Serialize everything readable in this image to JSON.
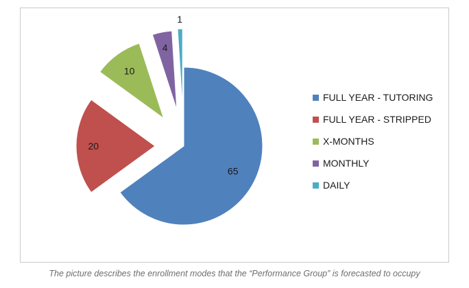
{
  "chart_data": {
    "type": "pie",
    "exploded": true,
    "categories": [
      "FULL YEAR - TUTORING",
      "FULL YEAR - STRIPPED",
      "X-MONTHS",
      "MONTHLY",
      "DAILY"
    ],
    "values": [
      65,
      20,
      10,
      4,
      1
    ],
    "colors": [
      "#4f81bd",
      "#c0504d",
      "#9bbb59",
      "#8064a2",
      "#4bacc6"
    ],
    "legend_position": "right",
    "title": ""
  },
  "caption": "The picture describes the enrollment modes that the “Performance Group” is forecasted to occupy"
}
